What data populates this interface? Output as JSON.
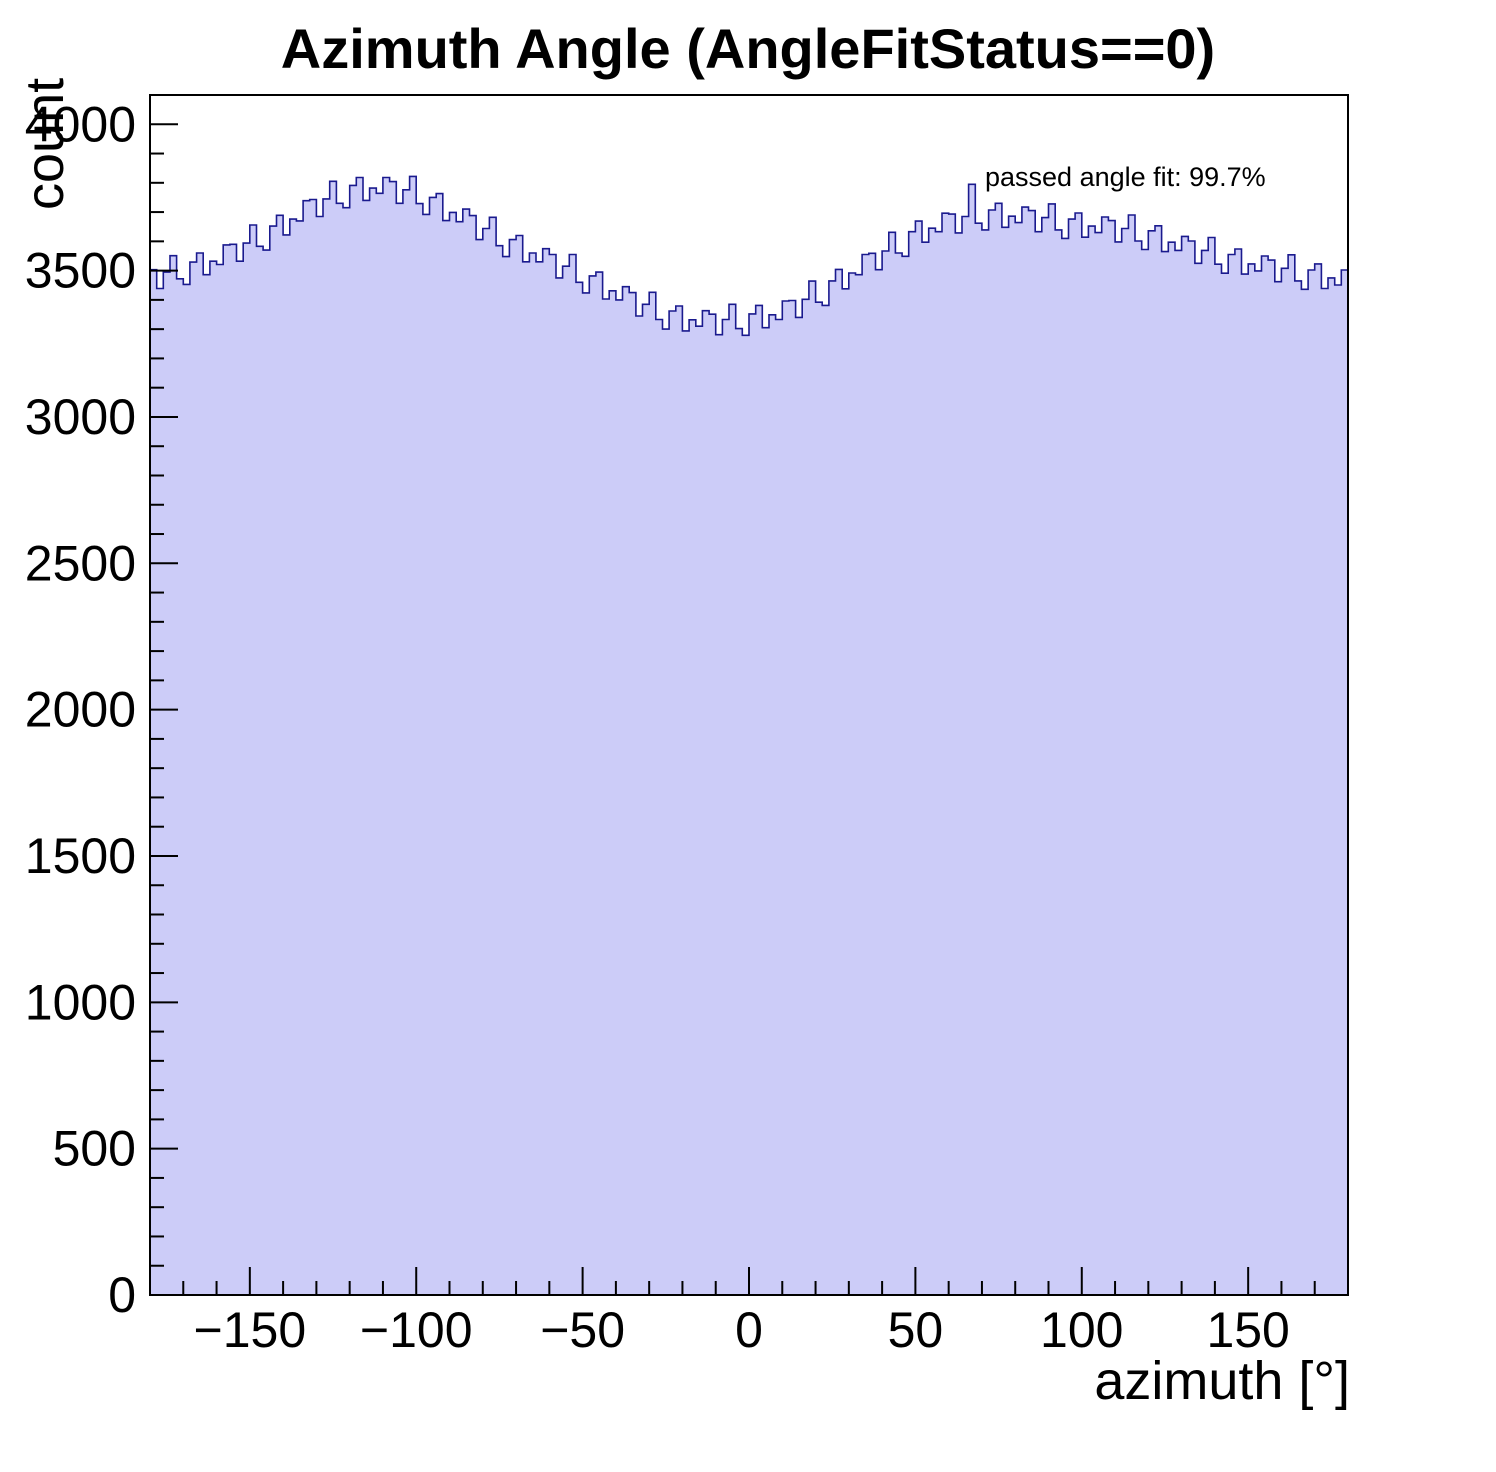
{
  "chart_data": {
    "type": "bar",
    "subtype": "histogram",
    "title": "Azimuth Angle (AngleFitStatus==0)",
    "xlabel": "azimuth [°]",
    "ylabel": "count",
    "annotation": "passed angle fit: 99.7%",
    "xlim": [
      -180,
      180
    ],
    "ylim": [
      0,
      4100
    ],
    "x_start": -180,
    "bin_width": 2,
    "x_major_ticks": [
      -150,
      -100,
      -50,
      0,
      50,
      100,
      150
    ],
    "x_minor_step": 10,
    "y_major_ticks": [
      0,
      500,
      1000,
      1500,
      2000,
      2500,
      3000,
      3500,
      4000
    ],
    "y_minor_step": 100,
    "grid": "off",
    "legend": "none",
    "fill_color": "#ccccf8",
    "line_color": "#1a1a8e",
    "frame_color": "#000000",
    "values": [
      3503,
      3439,
      3495,
      3551,
      3472,
      3453,
      3529,
      3560,
      3486,
      3532,
      3521,
      3588,
      3590,
      3532,
      3594,
      3656,
      3583,
      3570,
      3652,
      3689,
      3622,
      3676,
      3670,
      3739,
      3743,
      3685,
      3745,
      3805,
      3730,
      3715,
      3791,
      3818,
      3740,
      3782,
      3764,
      3818,
      3804,
      3730,
      3776,
      3822,
      3729,
      3692,
      3750,
      3763,
      3671,
      3699,
      3667,
      3710,
      3688,
      3606,
      3644,
      3682,
      3585,
      3548,
      3606,
      3620,
      3530,
      3560,
      3530,
      3575,
      3555,
      3475,
      3515,
      3555,
      3460,
      3424,
      3482,
      3495,
      3403,
      3431,
      3400,
      3445,
      3425,
      3345,
      3385,
      3426,
      3333,
      3300,
      3362,
      3379,
      3294,
      3332,
      3310,
      3363,
      3351,
      3281,
      3333,
      3385,
      3302,
      3279,
      3352,
      3381,
      3305,
      3349,
      3333,
      3396,
      3398,
      3340,
      3402,
      3464,
      3392,
      3381,
      3465,
      3504,
      3438,
      3492,
      3486,
      3555,
      3559,
      3503,
      3567,
      3631,
      3560,
      3549,
      3633,
      3669,
      3597,
      3645,
      3633,
      3696,
      3693,
      3629,
      3685,
      3795,
      3662,
      3639,
      3707,
      3730,
      3648,
      3686,
      3664,
      3717,
      3705,
      3633,
      3681,
      3728,
      3639,
      3610,
      3676,
      3697,
      3614,
      3652,
      3630,
      3683,
      3671,
      3598,
      3644,
      3690,
      3601,
      3572,
      3636,
      3653,
      3565,
      3597,
      3569,
      3617,
      3601,
      3525,
      3569,
      3613,
      3522,
      3491,
      3555,
      3574,
      3488,
      3523,
      3499,
      3550,
      3536,
      3462,
      3508,
      3554,
      3465,
      3436,
      3502,
      3523,
      3439,
      3475,
      3451,
      3502
    ]
  }
}
